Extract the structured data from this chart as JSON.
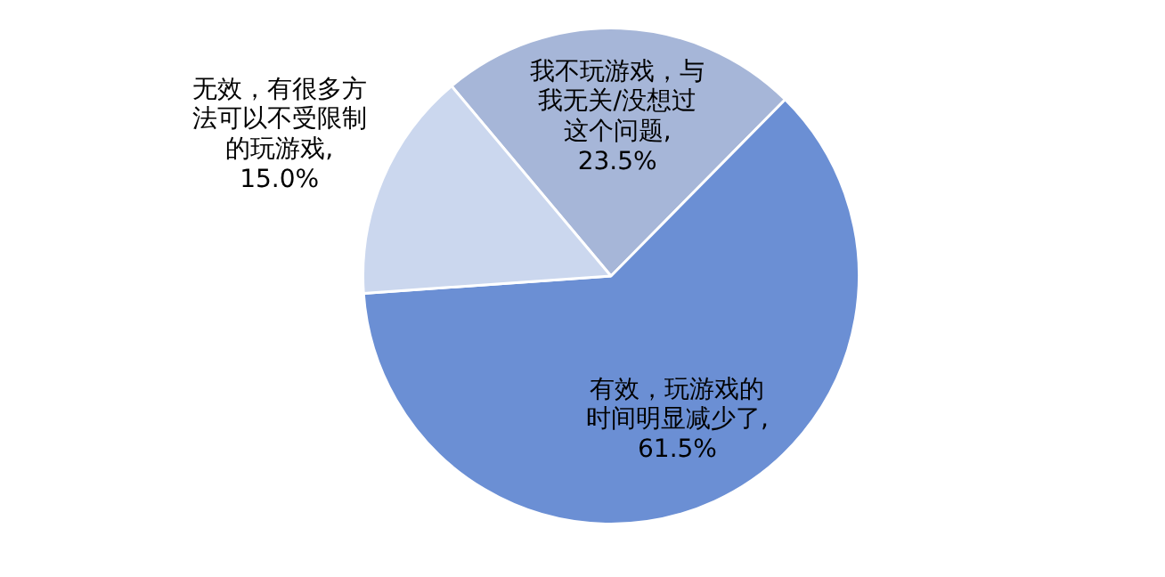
{
  "chart_data": {
    "type": "pie",
    "categories": [
      "我不玩游戏，与我无关/没想过这个问题",
      "有效，玩游戏的时间明显减少了",
      "无效，有很多方法可以不受限制的玩游戏"
    ],
    "values": [
      23.5,
      61.5,
      15.0
    ],
    "value_labels": [
      ",23.5%",
      ",61.5%",
      ",15.0%"
    ],
    "colors": [
      "#a6b6d8",
      "#6b8fd4",
      "#cbd7ee"
    ],
    "legend": false
  }
}
